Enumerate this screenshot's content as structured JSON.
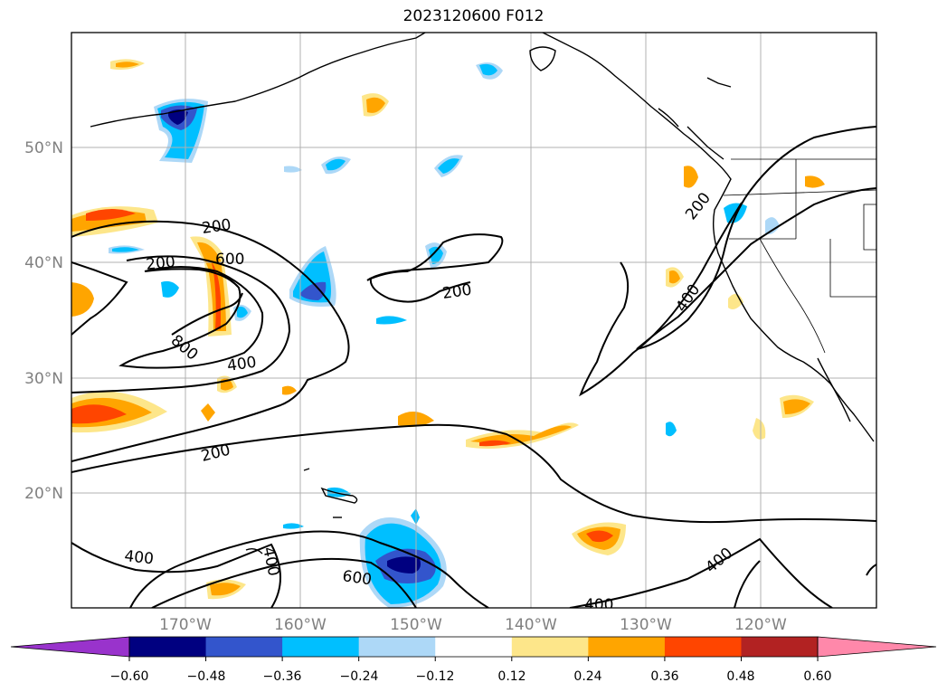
{
  "title": "2023120600 F012",
  "map": {
    "lat_labels": [
      "50°N",
      "40°N",
      "30°N",
      "20°N"
    ],
    "lon_labels": [
      "170°W",
      "160°W",
      "150°W",
      "140°W",
      "130°W",
      "120°W"
    ],
    "contour_labels": [
      "200",
      "200",
      "600",
      "800",
      "400",
      "200",
      "200",
      "400",
      "200",
      "400",
      "400",
      "400",
      "600",
      "400"
    ],
    "colors": {
      "axis_label": "#808080",
      "grid": "#b0b0b0",
      "contour": "#000000",
      "coast": "#000000"
    }
  },
  "colorbar": {
    "tick_labels": [
      "−0.60",
      "−0.48",
      "−0.36",
      "−0.24",
      "−0.12",
      "0.12",
      "0.24",
      "0.36",
      "0.48",
      "0.60"
    ],
    "colors": [
      "#9933cc",
      "#000080",
      "#3355cc",
      "#00bfff",
      "#add8f7",
      "#ffffff",
      "#fde68a",
      "#ffa500",
      "#ff4500",
      "#b22222",
      "#ff88aa"
    ]
  }
}
